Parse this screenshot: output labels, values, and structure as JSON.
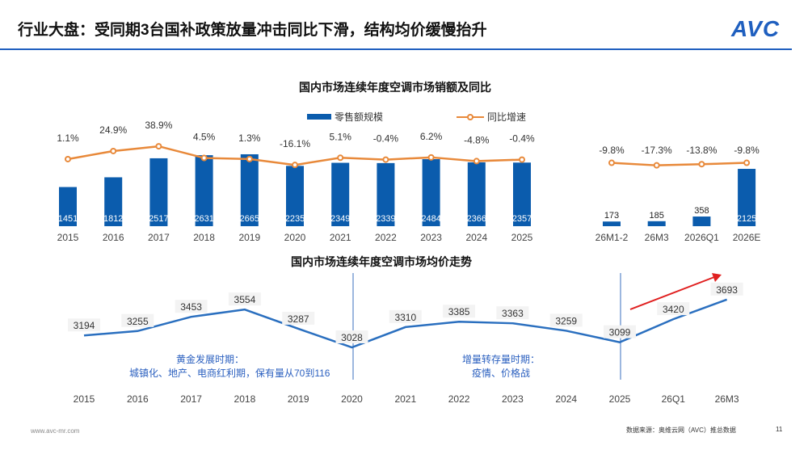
{
  "header": {
    "title": "行业大盘：受同期3台国补政策放量冲击同比下滑，结构均价缓慢抬升",
    "logo": "AVC"
  },
  "footer": {
    "url": "www.avc-mr.com",
    "source": "数据来源：奥维云网（AVC）推总数据",
    "page": "11"
  },
  "colors": {
    "bar": "#0b5cad",
    "line": "#e8893a",
    "price_line": "#2a6fbf",
    "arrow": "#e02020"
  },
  "chart_data": [
    {
      "type": "bar",
      "title": "国内市场连续年度空调市场销额及同比",
      "legend": [
        "零售额规模",
        "同比增速"
      ],
      "legend_position": "top",
      "categories": [
        "2015",
        "2016",
        "2017",
        "2018",
        "2019",
        "2020",
        "2021",
        "2022",
        "2023",
        "2024",
        "2025"
      ],
      "series": [
        {
          "name": "零售额规模",
          "values": [
            1451,
            1812,
            2517,
            2631,
            2665,
            2235,
            2349,
            2339,
            2484,
            2366,
            2357
          ]
        },
        {
          "name": "同比增速",
          "type": "line",
          "values": [
            1.1,
            24.9,
            38.9,
            4.5,
            1.3,
            -16.1,
            5.1,
            -0.4,
            6.2,
            -4.8,
            -0.4
          ],
          "labels": [
            "1.1%",
            "24.9%",
            "38.9%",
            "4.5%",
            "1.3%",
            "-16.1%",
            "5.1%",
            "-0.4%",
            "6.2%",
            "-4.8%",
            "-0.4%"
          ]
        }
      ]
    },
    {
      "type": "bar",
      "categories": [
        "26M1-2",
        "26M3",
        "2026Q1",
        "2026E"
      ],
      "series": [
        {
          "name": "零售额规模",
          "values": [
            173,
            185,
            358,
            2125
          ]
        },
        {
          "name": "同比增速",
          "type": "line",
          "values": [
            -9.8,
            -17.3,
            -13.8,
            -9.8
          ],
          "labels": [
            "-9.8%",
            "-17.3%",
            "-13.8%",
            "-9.8%"
          ]
        }
      ]
    },
    {
      "type": "line",
      "title": "国内市场连续年度空调市场均价走势",
      "categories": [
        "2015",
        "2016",
        "2017",
        "2018",
        "2019",
        "2020",
        "2021",
        "2022",
        "2023",
        "2024",
        "2025",
        "26Q1",
        "26M3"
      ],
      "values": [
        3194,
        3255,
        3453,
        3554,
        3287,
        3028,
        3310,
        3385,
        3363,
        3259,
        3099,
        3420,
        3693
      ],
      "annotations": [
        {
          "title": "黄金发展时期：",
          "text": "城镇化、地产、电商红利期，保有量从70到116"
        },
        {
          "title": "增量转存量时期：",
          "text": "疫情、价格战"
        }
      ]
    }
  ]
}
